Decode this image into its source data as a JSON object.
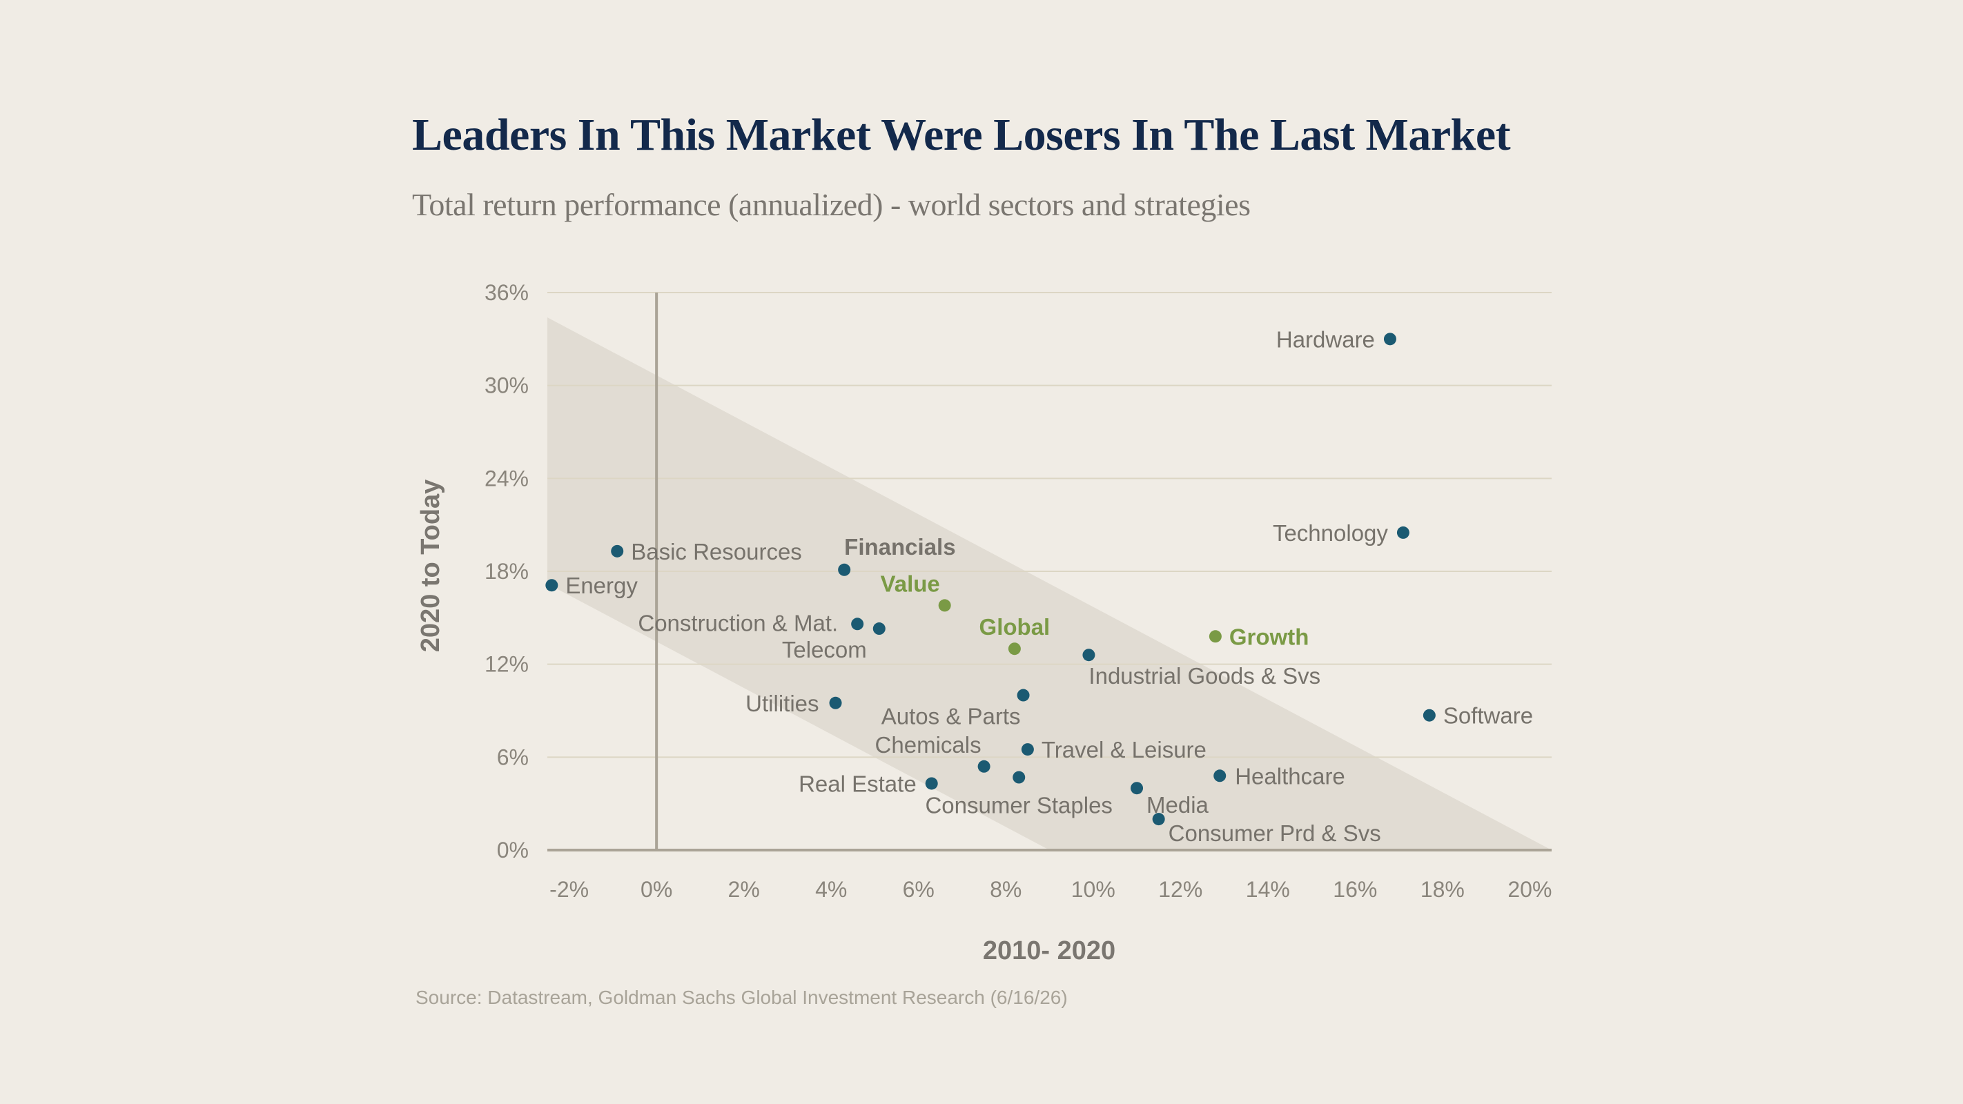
{
  "title": "Leaders In This Market Were Losers In The Last Market",
  "subtitle": "Total return performance (annualized) - world sectors and strategies",
  "source": "Source: Datastream, Goldman Sachs Global Investment Research (6/16/26)",
  "colors": {
    "background": "#f0ece5",
    "title": "#13294b",
    "sector_point": "#1b5a72",
    "strategy_point": "#7a9a45",
    "band": "#ddd8ce",
    "grid": "#dcd6c4",
    "axis": "#aaa396"
  },
  "chart_data": {
    "type": "scatter",
    "title": "Leaders In This Market Were Losers In The Last Market",
    "subtitle": "Total return performance (annualized) - world sectors and strategies",
    "xlabel": "2010- 2020",
    "ylabel": "2020 to Today",
    "xlim": [
      -2.5,
      20.5
    ],
    "ylim": [
      0,
      36
    ],
    "x_ticks": [
      "-2%",
      "0%",
      "2%",
      "4%",
      "6%",
      "8%",
      "10%",
      "12%",
      "14%",
      "16%",
      "18%",
      "20%"
    ],
    "x_tick_values": [
      -2,
      0,
      2,
      4,
      6,
      8,
      10,
      12,
      14,
      16,
      18,
      20
    ],
    "y_ticks": [
      "0%",
      "6%",
      "12%",
      "18%",
      "24%",
      "30%",
      "36%"
    ],
    "y_tick_values": [
      0,
      6,
      12,
      18,
      24,
      30,
      36
    ],
    "grid": true,
    "band_note": "diagonal shaded band from upper-left to lower-right",
    "series": [
      {
        "name": "Sectors",
        "points": [
          {
            "label": "Hardware",
            "x": 16.8,
            "y": 33.0
          },
          {
            "label": "Technology",
            "x": 17.1,
            "y": 20.5
          },
          {
            "label": "Basic Resources",
            "x": -0.9,
            "y": 19.3
          },
          {
            "label": "Energy",
            "x": -2.4,
            "y": 17.1
          },
          {
            "label": "Financials",
            "x": 4.3,
            "y": 18.1
          },
          {
            "label": "Construction & Mat.",
            "x": 4.6,
            "y": 14.6
          },
          {
            "label": "Telecom",
            "x": 5.1,
            "y": 14.3
          },
          {
            "label": "Industrial Goods & Svs",
            "x": 9.9,
            "y": 12.6
          },
          {
            "label": "Software",
            "x": 17.7,
            "y": 8.7
          },
          {
            "label": "Utilities",
            "x": 4.1,
            "y": 9.5
          },
          {
            "label": "Autos & Parts",
            "x": 8.4,
            "y": 10.0
          },
          {
            "label": "Chemicals",
            "x": 7.5,
            "y": 5.4
          },
          {
            "label": "Travel & Leisure",
            "x": 8.5,
            "y": 6.5
          },
          {
            "label": "Real Estate",
            "x": 6.3,
            "y": 4.3
          },
          {
            "label": "Consumer Staples",
            "x": 8.3,
            "y": 4.7
          },
          {
            "label": "Healthcare",
            "x": 12.9,
            "y": 4.8
          },
          {
            "label": "Media",
            "x": 11.0,
            "y": 4.0
          },
          {
            "label": "Consumer Prd & Svs",
            "x": 11.5,
            "y": 2.0
          }
        ]
      },
      {
        "name": "Strategies",
        "points": [
          {
            "label": "Value",
            "x": 6.6,
            "y": 15.8
          },
          {
            "label": "Global",
            "x": 8.2,
            "y": 13.0
          },
          {
            "label": "Growth",
            "x": 12.8,
            "y": 13.8
          }
        ]
      }
    ]
  }
}
